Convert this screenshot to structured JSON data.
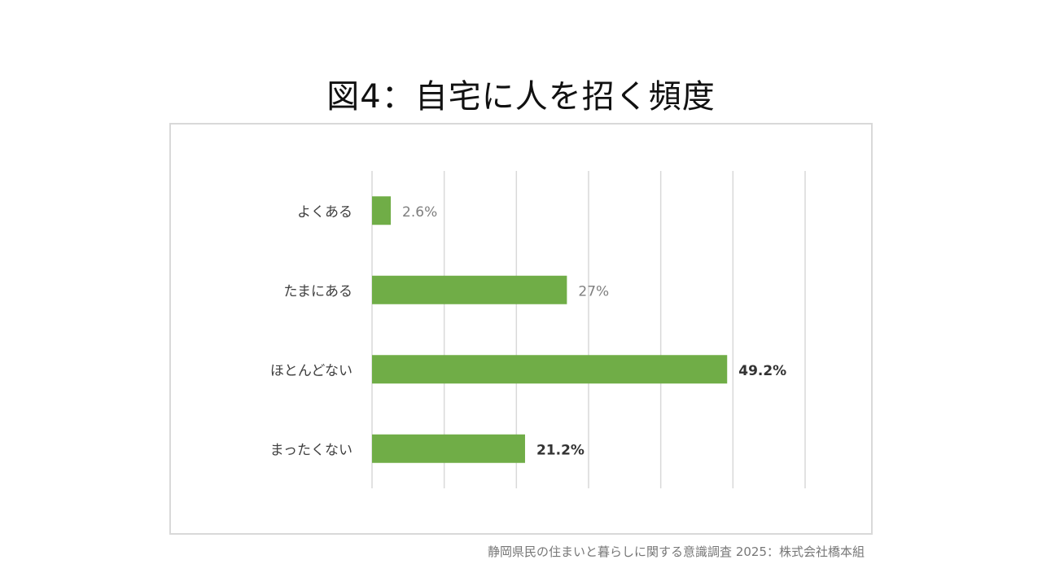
{
  "slide": {
    "title": "図4：自宅に人を招く頻度",
    "source": "静岡県民の住まいと暮らしに関する意識調査 2025：株式会社橋本組"
  },
  "chart_data": {
    "type": "bar",
    "orientation": "horizontal",
    "categories": [
      "よくある",
      "たまにある",
      "ほとんどない",
      "まったくない"
    ],
    "values": [
      2.6,
      27,
      49.2,
      21.2
    ],
    "data_labels": [
      "2.6%",
      "27%",
      "49.2%",
      "21.2%"
    ],
    "highlighted": [
      false,
      false,
      true,
      true
    ],
    "xlim": [
      0,
      60
    ],
    "gridlines": true,
    "gridline_count": 7,
    "axis_labels_shown": false,
    "colors": {
      "bar": "#70ad47",
      "gridline": "#d9d9d9",
      "label_normal": "#7f7f7f",
      "label_highlight": "#333333",
      "category_text": "#404040"
    }
  }
}
